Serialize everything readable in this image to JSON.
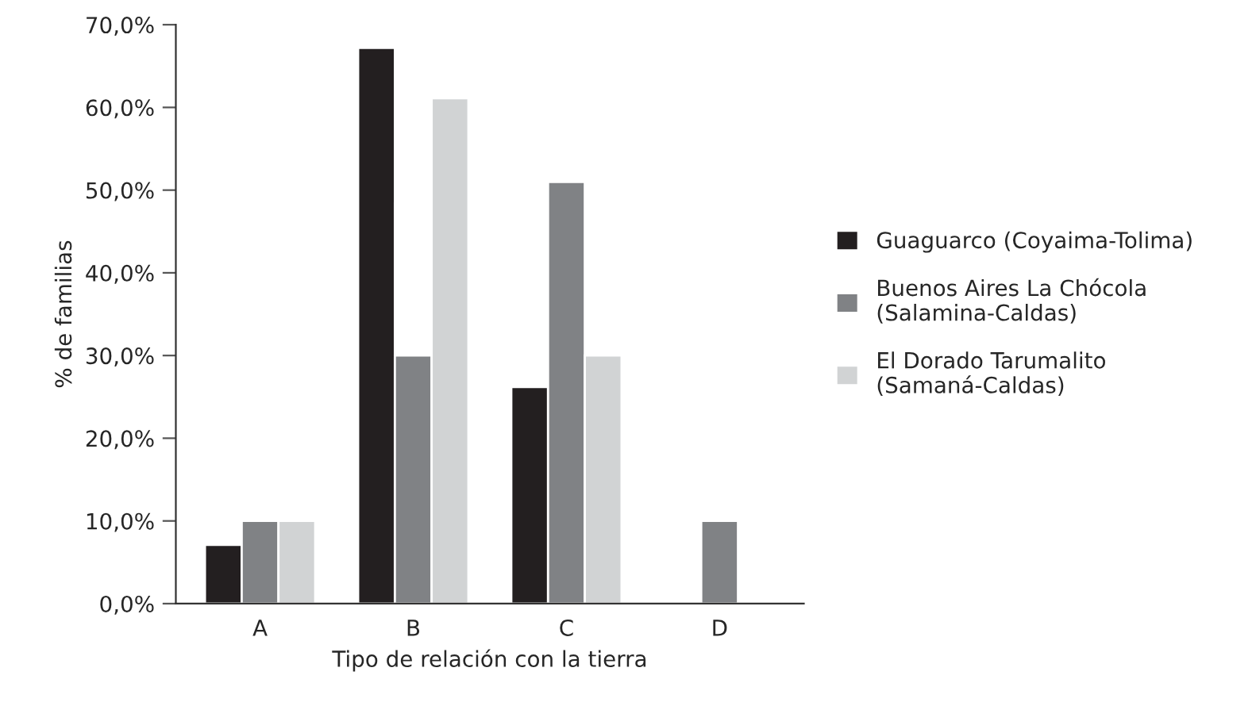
{
  "chart_data": {
    "type": "bar",
    "xlabel": "Tipo de relación con la tierra",
    "ylabel": "% de familias",
    "categories": [
      "A",
      "B",
      "C",
      "D"
    ],
    "series": [
      {
        "name": "Guaguarco (Coyaima-Tolima)",
        "color": "#231f20",
        "values": [
          7.1,
          67.2,
          26.2,
          null
        ]
      },
      {
        "name": "Buenos Aires La Chócola\n(Salamina-Caldas)",
        "color": "#808285",
        "values": [
          10.0,
          30.0,
          51.0,
          10.0
        ]
      },
      {
        "name": "El Dorado Tarumalito\n(Samaná-Caldas)",
        "color": "#d1d3d4",
        "values": [
          10.0,
          61.1,
          30.0,
          null
        ]
      }
    ],
    "ylim": [
      0,
      70
    ],
    "yticks": [
      {
        "value": 0,
        "label": "0,0%"
      },
      {
        "value": 10,
        "label": "10,0%"
      },
      {
        "value": 20,
        "label": "20,0%"
      },
      {
        "value": 30,
        "label": "30,0%"
      },
      {
        "value": 40,
        "label": "40,0%"
      },
      {
        "value": 50,
        "label": "50,0%"
      },
      {
        "value": 60,
        "label": "60,0%"
      },
      {
        "value": 70,
        "label": "70,0%"
      }
    ],
    "grid": false,
    "legend": "right"
  }
}
